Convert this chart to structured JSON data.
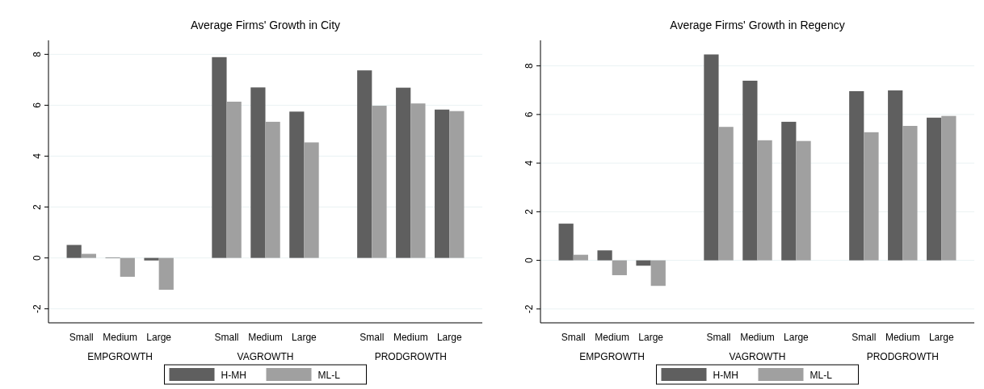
{
  "chart_data": [
    {
      "type": "bar",
      "title": "Average Firms' Growth in City",
      "categories": [
        "Small",
        "Medium",
        "Large",
        "Small",
        "Medium",
        "Large",
        "Small",
        "Medium",
        "Large"
      ],
      "series": [
        {
          "name": "H-MH",
          "color": "#5f5f5f",
          "values": [
            0.51,
            0.02,
            -0.1,
            7.89,
            6.7,
            5.75,
            7.37,
            6.69,
            5.83
          ]
        },
        {
          "name": "ML-L",
          "color": "#a0a0a0",
          "values": [
            0.16,
            -0.74,
            -1.25,
            6.14,
            5.35,
            4.54,
            5.98,
            6.07,
            5.77
          ]
        }
      ],
      "annotations": [
        "EMPGROWTH",
        "VAGROWTH",
        "PRODGROWTH"
      ],
      "ylim": [
        -2.55,
        8.55
      ],
      "yticks": [
        -2,
        0,
        2,
        4,
        6,
        8
      ],
      "grid": "y",
      "legend": "bottom"
    },
    {
      "type": "bar",
      "title": "Average Firms' Growth in Regency",
      "categories": [
        "Small",
        "Medium",
        "Large",
        "Small",
        "Medium",
        "Large",
        "Small",
        "Medium",
        "Large"
      ],
      "series": [
        {
          "name": "H-MH",
          "color": "#5f5f5f",
          "values": [
            1.51,
            0.41,
            -0.22,
            8.47,
            7.39,
            5.7,
            6.96,
            6.99,
            5.87
          ]
        },
        {
          "name": "ML-L",
          "color": "#a0a0a0",
          "values": [
            0.23,
            -0.61,
            -1.05,
            5.49,
            4.94,
            4.91,
            5.27,
            5.53,
            5.94
          ]
        }
      ],
      "annotations": [
        "EMPGROWTH",
        "VAGROWTH",
        "PRODGROWTH"
      ],
      "ylim": [
        -2.57,
        9.05
      ],
      "yticks": [
        -2,
        0,
        2,
        4,
        6,
        8
      ],
      "grid": "y",
      "legend": "bottom"
    }
  ]
}
